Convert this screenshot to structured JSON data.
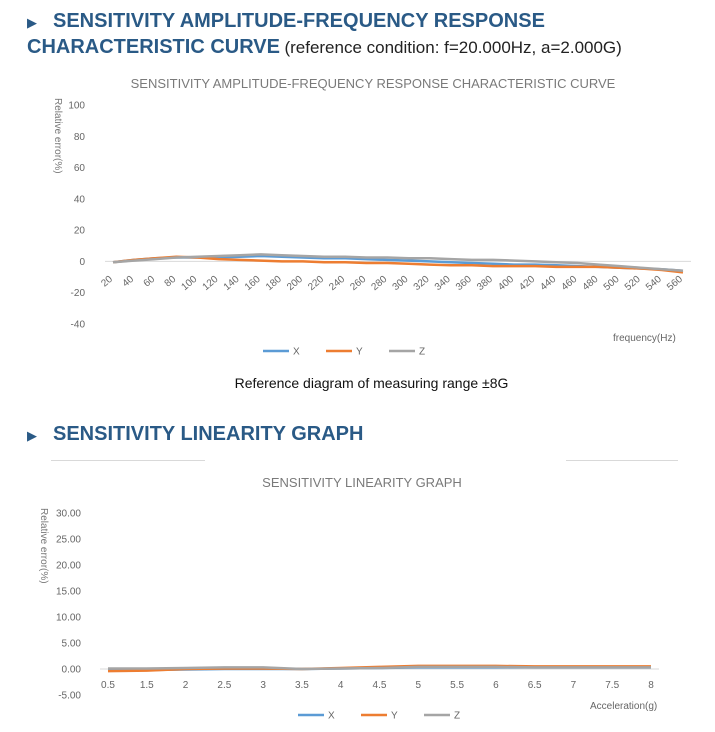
{
  "section1": {
    "arrow": "▶",
    "title_line1": "SENSITIVITY AMPLITUDE-FREQUENCY RESPONSE",
    "title_line2": "CHARACTERISTIC CURVE",
    "reference": "(reference condition: f=20.000Hz, a=2.000G)",
    "caption": "Reference diagram of measuring range ±8G"
  },
  "section2": {
    "arrow": "▶",
    "title": "SENSITIVITY LINEARITY GRAPH"
  },
  "chart_data": [
    {
      "type": "line",
      "title": "SENSITIVITY AMPLITUDE-FREQUENCY RESPONSE CHARACTERISTIC CURVE",
      "xlabel": "frequency(Hz)",
      "ylabel": "Relative error(%)",
      "ylim": [
        -40,
        100
      ],
      "yticks": [
        "100",
        "80",
        "60",
        "40",
        "20",
        "0",
        "-20",
        "-40"
      ],
      "categories": [
        "20",
        "40",
        "60",
        "80",
        "100",
        "120",
        "140",
        "160",
        "180",
        "200",
        "220",
        "240",
        "260",
        "280",
        "300",
        "320",
        "340",
        "360",
        "380",
        "400",
        "420",
        "440",
        "460",
        "480",
        "500",
        "520",
        "540",
        "560"
      ],
      "legend_position": "bottom",
      "grid": false,
      "series": [
        {
          "name": "X",
          "color": "#5b9bd5",
          "values": [
            -0.5,
            1,
            2,
            2.5,
            2.5,
            2.5,
            3,
            3.5,
            3,
            2.5,
            2,
            2,
            1.5,
            1,
            0.5,
            0,
            -0.5,
            -1,
            -1.5,
            -2,
            -2,
            -2.5,
            -3,
            -3.5,
            -4,
            -4.5,
            -5,
            -6
          ]
        },
        {
          "name": "Y",
          "color": "#ed7d31",
          "values": [
            -0.5,
            1,
            2,
            3,
            2.5,
            1.5,
            1,
            0.5,
            0,
            0,
            -0.5,
            -0.5,
            -1,
            -1,
            -1.5,
            -2,
            -2.5,
            -2.5,
            -3,
            -3,
            -3,
            -3.5,
            -3.5,
            -3.5,
            -4,
            -4.5,
            -5.5,
            -7
          ]
        },
        {
          "name": "Z",
          "color": "#a5a5a5",
          "values": [
            -0.5,
            0.5,
            1.5,
            2.5,
            3,
            3.5,
            4,
            4.5,
            4,
            3.5,
            3,
            3,
            2.5,
            2.5,
            2,
            2,
            1.5,
            1,
            1,
            0.5,
            0,
            -0.5,
            -1,
            -2,
            -3,
            -4,
            -5,
            -6
          ]
        }
      ]
    },
    {
      "type": "line",
      "title": "SENSITIVITY LINEARITY GRAPH",
      "xlabel": "Acceleration(g)",
      "ylabel": "Relative error(%)",
      "ylim": [
        -5,
        30
      ],
      "yticks": [
        "30.00",
        "25.00",
        "20.00",
        "15.00",
        "10.00",
        "5.00",
        "0.00",
        "-5.00"
      ],
      "categories": [
        "0.5",
        "1.5",
        "2",
        "2.5",
        "3",
        "3.5",
        "4",
        "4.5",
        "5",
        "5.5",
        "6",
        "6.5",
        "7",
        "7.5",
        "8"
      ],
      "legend_position": "bottom",
      "grid": false,
      "series": [
        {
          "name": "X",
          "color": "#5b9bd5",
          "values": [
            -0.3,
            -0.2,
            -0.1,
            0,
            0,
            0,
            0.1,
            0.2,
            0.3,
            0.3,
            0.3,
            0.3,
            0.3,
            0.3,
            0.3
          ]
        },
        {
          "name": "Y",
          "color": "#ed7d31",
          "values": [
            -0.4,
            -0.3,
            0,
            0.1,
            0.1,
            0,
            0.2,
            0.4,
            0.6,
            0.6,
            0.6,
            0.5,
            0.5,
            0.5,
            0.5
          ]
        },
        {
          "name": "Z",
          "color": "#a5a5a5",
          "values": [
            0.1,
            0.1,
            0.2,
            0.3,
            0.3,
            0,
            0.1,
            0.2,
            0.4,
            0.4,
            0.4,
            0.3,
            0.3,
            0.3,
            0.3
          ]
        }
      ]
    }
  ]
}
